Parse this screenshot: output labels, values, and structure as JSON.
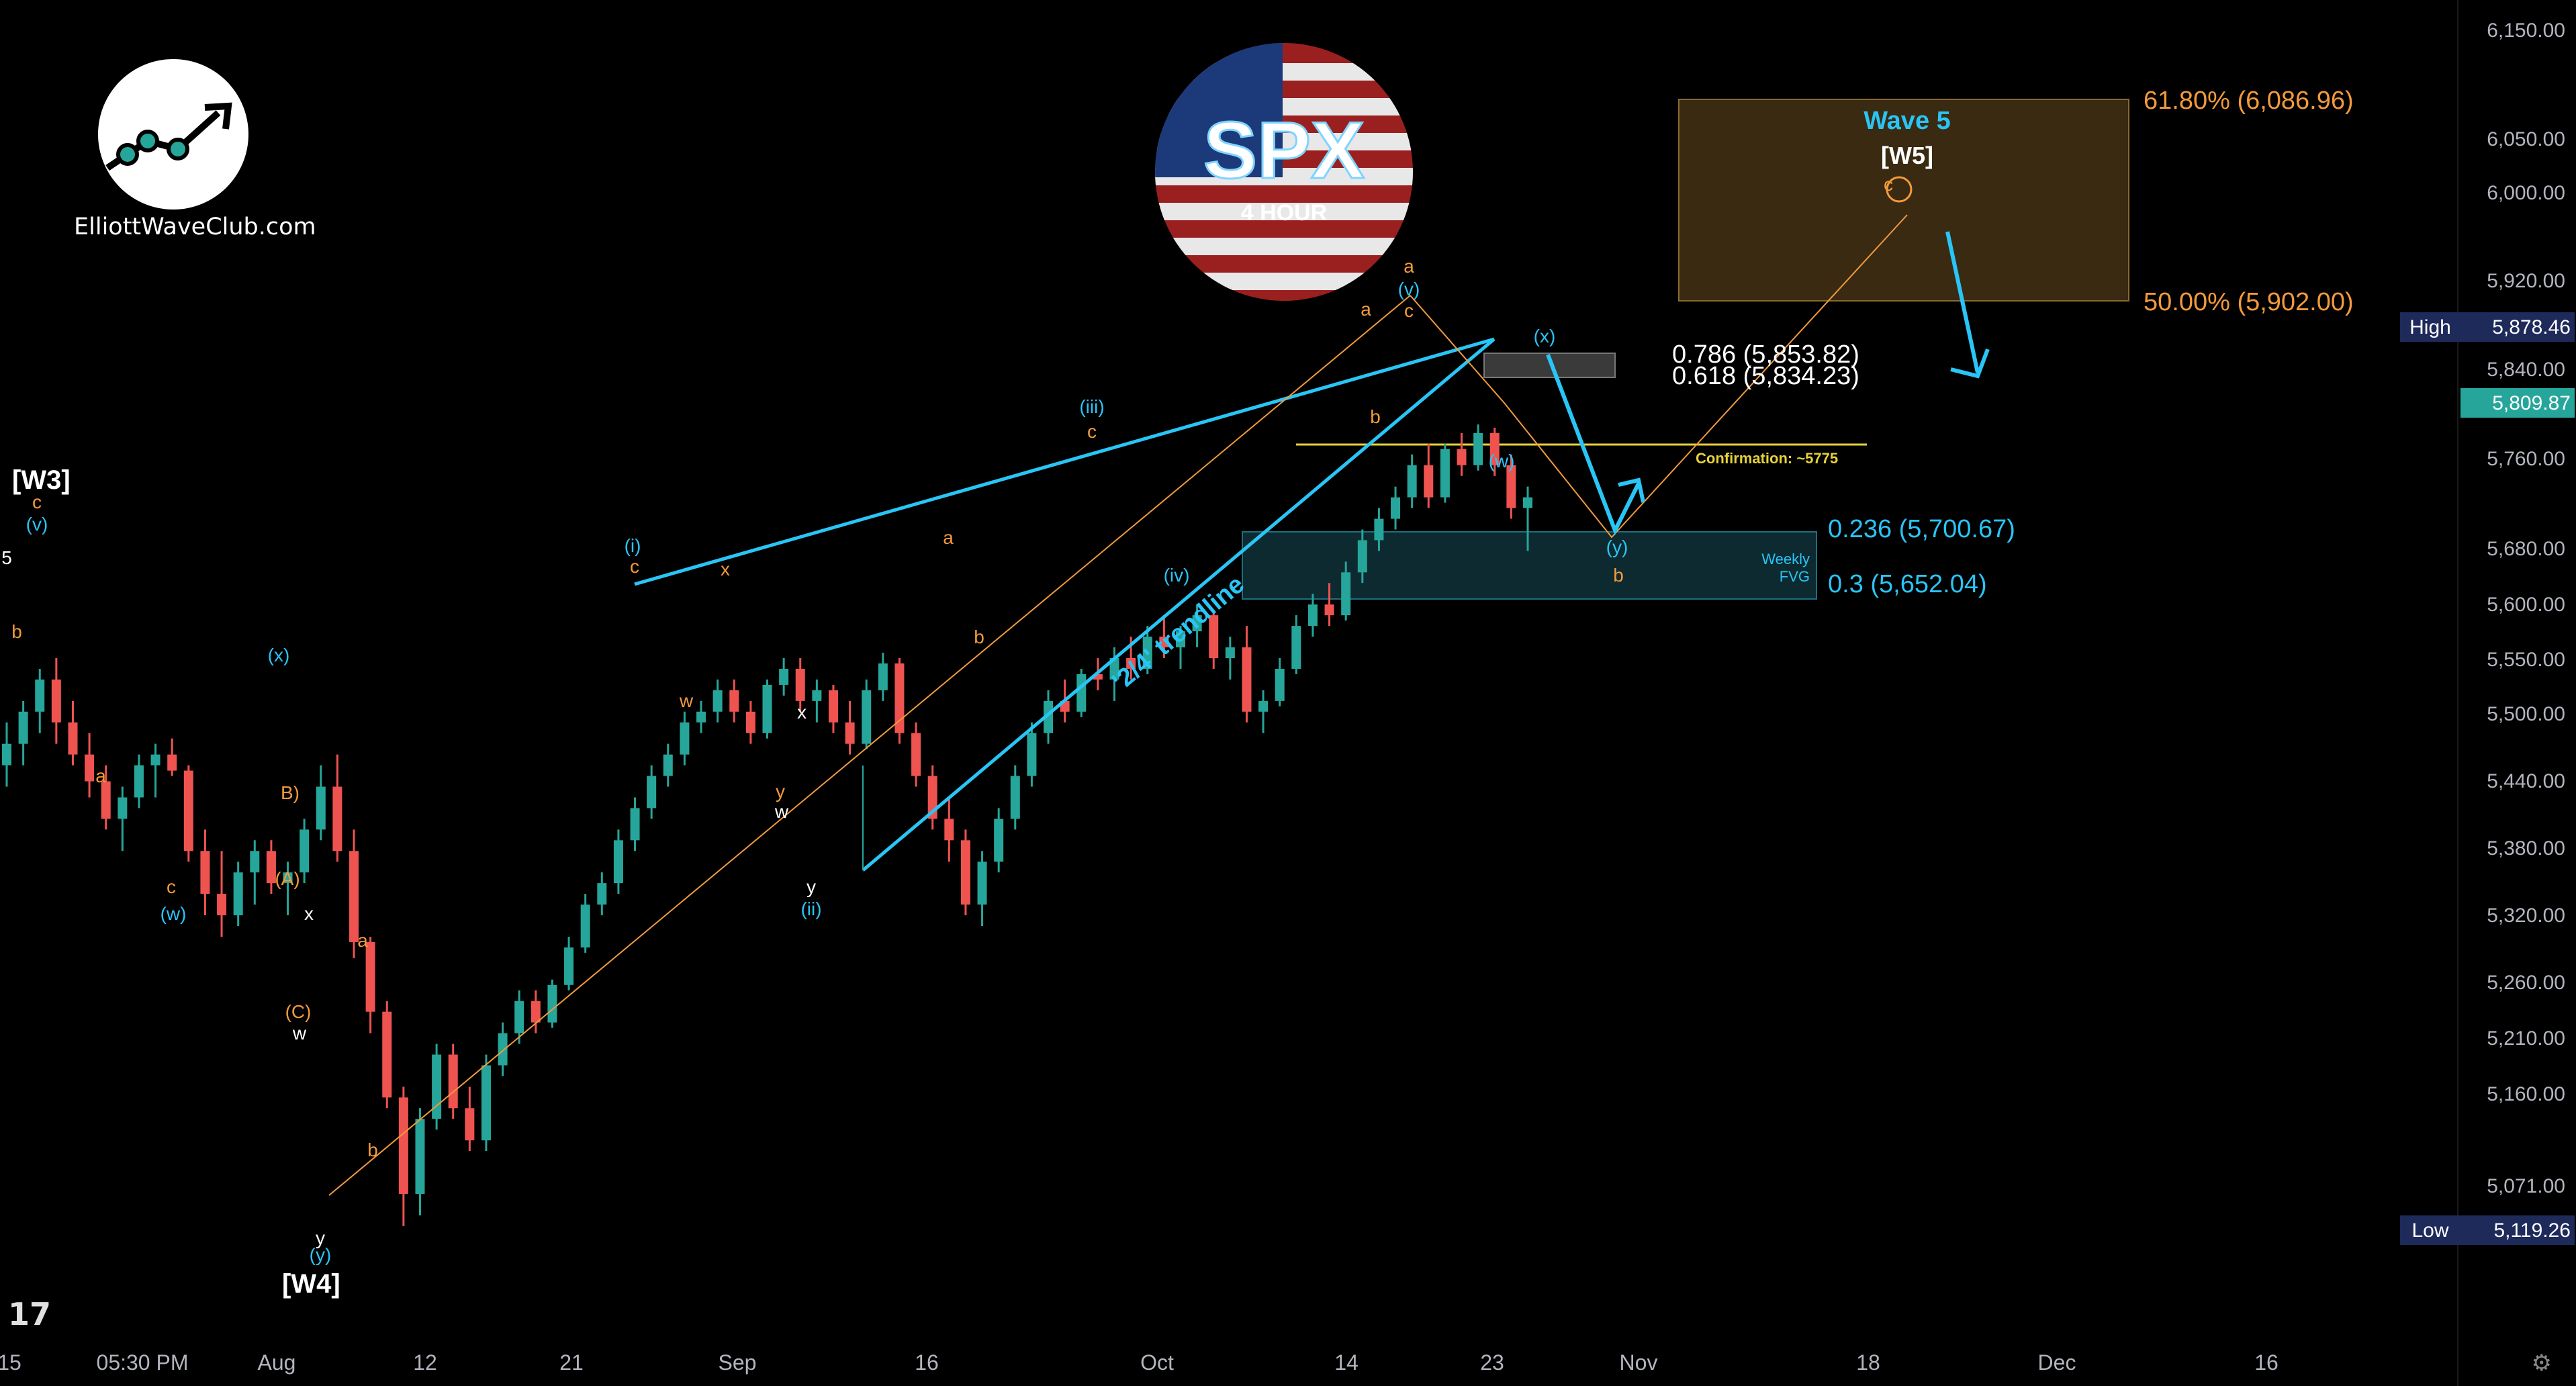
{
  "branding": {
    "site": "ElliottWaveClub.com",
    "symbol": "SPX",
    "timeframe": "4 HOUR"
  },
  "colors": {
    "up": "#26a69a",
    "down": "#ef5350",
    "cyan": "#29c5f6",
    "orange": "#f39a3c",
    "white": "#ffffff",
    "yellow": "#e6d23a",
    "box_fill": "#3a2a12",
    "fvg_fill": "#0d2a30"
  },
  "chart_data": {
    "type": "candlestick",
    "y_axis": {
      "ticks": [
        "6,150.00",
        "6,050.00",
        "6,000.00",
        "5,920.00",
        "5,840.00",
        "5,760.00",
        "5,680.00",
        "5,600.00",
        "5,550.00",
        "5,500.00",
        "5,440.00",
        "5,380.00",
        "5,320.00",
        "5,260.00",
        "5,210.00",
        "5,160.00",
        "5,071.00"
      ]
    },
    "x_axis": {
      "labels": [
        "15",
        "05:30 PM",
        "Aug",
        "12",
        "21",
        "Sep",
        "16",
        "Oct",
        "14",
        "23",
        "Nov",
        "18",
        "Dec",
        "16"
      ]
    },
    "price_badges": [
      {
        "label": "High",
        "value": "5,878.46"
      },
      {
        "label": "",
        "value": "5,809.87"
      },
      {
        "label": "Low",
        "value": "5,119.26"
      }
    ],
    "fib_levels": [
      {
        "text": "61.80% (6,086.96)",
        "color": "orange"
      },
      {
        "text": "50.00% (5,902.00)",
        "color": "orange"
      },
      {
        "text": "0.786 (5,853.82)",
        "color": "white"
      },
      {
        "text": "0.618 (5,834.23)",
        "color": "white"
      },
      {
        "text": "0.236 (5,700.67)",
        "color": "cyan"
      },
      {
        "text": "0.3 (5,652.04)",
        "color": "cyan"
      }
    ],
    "annotations": {
      "wave5_title": "Wave 5",
      "wave5_sub": "[W5]",
      "confirmation": "Confirmation: ~5775",
      "trendline": "'2/4' trendline",
      "fvg_line1": "Weekly",
      "fvg_line2": "FVG",
      "w3": "[W3]",
      "w4": "[W4]"
    },
    "wave_labels": [
      {
        "t": "(v)",
        "c": "cyan"
      },
      {
        "t": "c",
        "c": "orange"
      },
      {
        "t": "5",
        "c": "white"
      },
      {
        "t": "b",
        "c": "orange"
      },
      {
        "t": "a",
        "c": "orange"
      },
      {
        "t": "c",
        "c": "orange"
      },
      {
        "t": "(w)",
        "c": "cyan"
      },
      {
        "t": "(x)",
        "c": "cyan"
      },
      {
        "t": "B)",
        "c": "orange"
      },
      {
        "t": "(A)",
        "c": "orange"
      },
      {
        "t": "x",
        "c": "white"
      },
      {
        "t": "(C)",
        "c": "orange"
      },
      {
        "t": "w",
        "c": "white"
      },
      {
        "t": "a",
        "c": "orange"
      },
      {
        "t": "b",
        "c": "orange"
      },
      {
        "t": "y",
        "c": "white"
      },
      {
        "t": "(y)",
        "c": "cyan"
      },
      {
        "t": "(i)",
        "c": "cyan"
      },
      {
        "t": "c",
        "c": "orange"
      },
      {
        "t": "x",
        "c": "orange"
      },
      {
        "t": "w",
        "c": "orange"
      },
      {
        "t": "x",
        "c": "white"
      },
      {
        "t": "y",
        "c": "orange"
      },
      {
        "t": "w",
        "c": "white"
      },
      {
        "t": "y",
        "c": "white"
      },
      {
        "t": "(ii)",
        "c": "cyan"
      },
      {
        "t": "a",
        "c": "orange"
      },
      {
        "t": "b",
        "c": "orange"
      },
      {
        "t": "(iii)",
        "c": "cyan"
      },
      {
        "t": "c",
        "c": "orange"
      },
      {
        "t": "(iv)",
        "c": "cyan"
      },
      {
        "t": "a",
        "c": "orange"
      },
      {
        "t": "b",
        "c": "orange"
      },
      {
        "t": "c",
        "c": "orange"
      },
      {
        "t": "(v)",
        "c": "cyan"
      },
      {
        "t": "a",
        "c": "orange"
      },
      {
        "t": "(w)",
        "c": "cyan"
      },
      {
        "t": "(x)",
        "c": "cyan"
      },
      {
        "t": "(y)",
        "c": "cyan"
      },
      {
        "t": "b",
        "c": "orange"
      },
      {
        "t": "c",
        "c": "orange"
      }
    ],
    "candles": [
      [
        5560,
        5600,
        5540,
        5580
      ],
      [
        5580,
        5620,
        5560,
        5610
      ],
      [
        5610,
        5650,
        5590,
        5640
      ],
      [
        5640,
        5660,
        5580,
        5600
      ],
      [
        5600,
        5620,
        5560,
        5570
      ],
      [
        5570,
        5590,
        5530,
        5545
      ],
      [
        5545,
        5560,
        5500,
        5510
      ],
      [
        5510,
        5540,
        5480,
        5530
      ],
      [
        5530,
        5570,
        5520,
        5560
      ],
      [
        5560,
        5580,
        5530,
        5570
      ],
      [
        5570,
        5585,
        5550,
        5555
      ],
      [
        5555,
        5560,
        5470,
        5480
      ],
      [
        5480,
        5500,
        5420,
        5440
      ],
      [
        5440,
        5480,
        5400,
        5420
      ],
      [
        5420,
        5470,
        5410,
        5460
      ],
      [
        5460,
        5490,
        5430,
        5480
      ],
      [
        5480,
        5490,
        5440,
        5450
      ],
      [
        5450,
        5470,
        5420,
        5460
      ],
      [
        5460,
        5510,
        5450,
        5500
      ],
      [
        5500,
        5560,
        5490,
        5540
      ],
      [
        5540,
        5570,
        5470,
        5480
      ],
      [
        5480,
        5500,
        5380,
        5395
      ],
      [
        5395,
        5400,
        5310,
        5330
      ],
      [
        5330,
        5340,
        5240,
        5250
      ],
      [
        5250,
        5260,
        5130,
        5160
      ],
      [
        5160,
        5240,
        5140,
        5230
      ],
      [
        5230,
        5300,
        5220,
        5290
      ],
      [
        5290,
        5300,
        5230,
        5240
      ],
      [
        5240,
        5260,
        5200,
        5210
      ],
      [
        5210,
        5290,
        5200,
        5280
      ],
      [
        5280,
        5320,
        5270,
        5310
      ],
      [
        5310,
        5350,
        5300,
        5340
      ],
      [
        5340,
        5350,
        5310,
        5320
      ],
      [
        5320,
        5360,
        5315,
        5355
      ],
      [
        5355,
        5400,
        5350,
        5390
      ],
      [
        5390,
        5440,
        5385,
        5430
      ],
      [
        5430,
        5460,
        5420,
        5450
      ],
      [
        5450,
        5500,
        5440,
        5490
      ],
      [
        5490,
        5530,
        5480,
        5520
      ],
      [
        5520,
        5560,
        5510,
        5550
      ],
      [
        5550,
        5580,
        5540,
        5570
      ],
      [
        5570,
        5610,
        5560,
        5600
      ],
      [
        5600,
        5620,
        5590,
        5610
      ],
      [
        5610,
        5640,
        5600,
        5630
      ],
      [
        5630,
        5640,
        5600,
        5610
      ],
      [
        5610,
        5620,
        5580,
        5590
      ],
      [
        5590,
        5640,
        5585,
        5635
      ],
      [
        5635,
        5660,
        5625,
        5650
      ],
      [
        5650,
        5660,
        5610,
        5620
      ],
      [
        5620,
        5640,
        5600,
        5630
      ],
      [
        5630,
        5635,
        5590,
        5600
      ],
      [
        5600,
        5620,
        5570,
        5580
      ],
      [
        5580,
        5640,
        5575,
        5630
      ],
      [
        5630,
        5665,
        5620,
        5655
      ],
      [
        5655,
        5660,
        5580,
        5590
      ],
      [
        5590,
        5600,
        5540,
        5550
      ],
      [
        5550,
        5560,
        5500,
        5510
      ],
      [
        5510,
        5530,
        5470,
        5490
      ],
      [
        5490,
        5500,
        5420,
        5430
      ],
      [
        5430,
        5480,
        5410,
        5470
      ],
      [
        5470,
        5520,
        5460,
        5510
      ],
      [
        5510,
        5560,
        5500,
        5550
      ],
      [
        5550,
        5600,
        5540,
        5590
      ],
      [
        5590,
        5630,
        5580,
        5620
      ],
      [
        5620,
        5640,
        5600,
        5610
      ],
      [
        5610,
        5650,
        5605,
        5645
      ],
      [
        5645,
        5660,
        5630,
        5640
      ],
      [
        5640,
        5670,
        5620,
        5660
      ],
      [
        5660,
        5680,
        5640,
        5650
      ],
      [
        5650,
        5690,
        5645,
        5680
      ],
      [
        5680,
        5700,
        5660,
        5670
      ],
      [
        5670,
        5690,
        5650,
        5685
      ],
      [
        5685,
        5710,
        5670,
        5700
      ],
      [
        5700,
        5705,
        5650,
        5660
      ],
      [
        5660,
        5680,
        5640,
        5670
      ],
      [
        5670,
        5690,
        5600,
        5610
      ],
      [
        5610,
        5630,
        5590,
        5620
      ],
      [
        5620,
        5660,
        5615,
        5650
      ],
      [
        5650,
        5700,
        5645,
        5690
      ],
      [
        5690,
        5720,
        5680,
        5710
      ],
      [
        5710,
        5730,
        5690,
        5700
      ],
      [
        5700,
        5750,
        5695,
        5740
      ],
      [
        5740,
        5780,
        5730,
        5770
      ],
      [
        5770,
        5800,
        5760,
        5790
      ],
      [
        5790,
        5820,
        5780,
        5810
      ],
      [
        5810,
        5850,
        5800,
        5840
      ],
      [
        5840,
        5860,
        5800,
        5810
      ],
      [
        5810,
        5860,
        5805,
        5855
      ],
      [
        5855,
        5870,
        5830,
        5840
      ],
      [
        5840,
        5878,
        5835,
        5870
      ],
      [
        5870,
        5875,
        5830,
        5840
      ],
      [
        5840,
        5850,
        5790,
        5800
      ],
      [
        5800,
        5820,
        5760,
        5810
      ]
    ]
  }
}
